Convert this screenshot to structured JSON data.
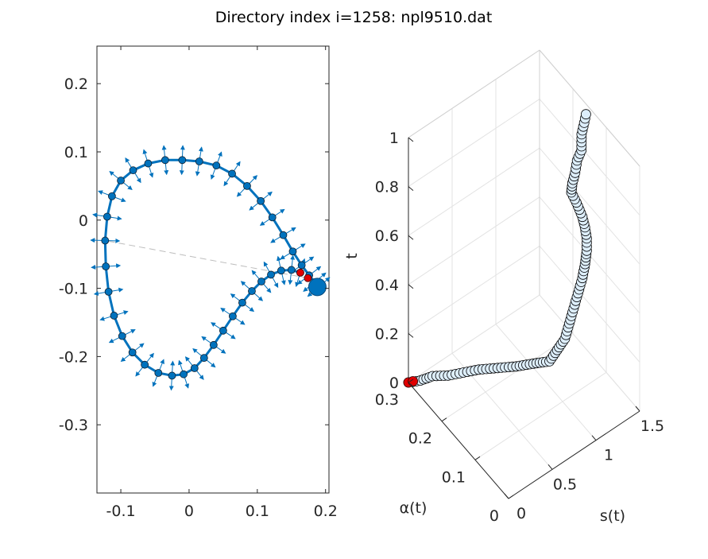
{
  "figure": {
    "title": "Directory index i=1258: npl9510.dat"
  },
  "chart_data": [
    {
      "type": "scatter",
      "name": "airfoil-2d",
      "xlim": [
        -0.135,
        0.205
      ],
      "ylim": [
        -0.4,
        0.255
      ],
      "xticks": [
        -0.1,
        0,
        0.1,
        0.2
      ],
      "xtick_labels": [
        "-0.1",
        "0",
        "0.1",
        "0.2"
      ],
      "yticks": [
        0.2,
        0.1,
        0,
        -0.1,
        -0.2,
        -0.3
      ],
      "ytick_labels": [
        "0.2",
        "0.1",
        "0",
        "-0.1",
        "-0.2",
        "-0.3"
      ],
      "colors": {
        "marker": "#0072BD",
        "highlight": "#E00000",
        "chord": "#BDBDBD"
      },
      "curve": [
        [
          0.163,
          -0.077
        ],
        [
          0.15,
          -0.073
        ],
        [
          0.135,
          -0.074
        ],
        [
          0.12,
          -0.08
        ],
        [
          0.106,
          -0.09
        ],
        [
          0.092,
          -0.104
        ],
        [
          0.078,
          -0.121
        ],
        [
          0.064,
          -0.141
        ],
        [
          0.05,
          -0.162
        ],
        [
          0.036,
          -0.183
        ],
        [
          0.022,
          -0.202
        ],
        [
          0.008,
          -0.217
        ],
        [
          -0.008,
          -0.226
        ],
        [
          -0.025,
          -0.228
        ],
        [
          -0.045,
          -0.224
        ],
        [
          -0.065,
          -0.212
        ],
        [
          -0.083,
          -0.194
        ],
        [
          -0.098,
          -0.17
        ],
        [
          -0.11,
          -0.14
        ],
        [
          -0.118,
          -0.105
        ],
        [
          -0.122,
          -0.068
        ],
        [
          -0.123,
          -0.03
        ],
        [
          -0.12,
          0.005
        ],
        [
          -0.113,
          0.035
        ],
        [
          -0.1,
          0.058
        ],
        [
          -0.082,
          0.073
        ],
        [
          -0.06,
          0.083
        ],
        [
          -0.035,
          0.088
        ],
        [
          -0.01,
          0.088
        ],
        [
          0.015,
          0.086
        ],
        [
          0.04,
          0.08
        ],
        [
          0.063,
          0.068
        ],
        [
          0.085,
          0.05
        ],
        [
          0.105,
          0.028
        ],
        [
          0.122,
          0.004
        ],
        [
          0.138,
          -0.022
        ],
        [
          0.152,
          -0.046
        ],
        [
          0.165,
          -0.066
        ],
        [
          0.176,
          -0.081
        ],
        [
          0.184,
          -0.091
        ],
        [
          0.19,
          -0.098
        ]
      ],
      "highlight_points": [
        [
          0.163,
          -0.077
        ],
        [
          0.174,
          -0.085
        ]
      ],
      "chord": [
        [
          0.174,
          -0.085
        ],
        [
          -0.123,
          -0.03
        ]
      ]
    },
    {
      "type": "scatter3d",
      "name": "parametric-3d",
      "xlabel": "s(t)",
      "ylabel": "α(t)",
      "zlabel": "t",
      "xlim": [
        0,
        1.5
      ],
      "ylim": [
        0,
        0.3
      ],
      "zlim": [
        0,
        1
      ],
      "xticks": [
        0,
        0.5,
        1,
        1.5
      ],
      "xtick_labels": [
        "0",
        "0.5",
        "1",
        "1.5"
      ],
      "yticks": [
        0,
        0.1,
        0.2,
        0.3
      ],
      "ytick_labels": [
        "0",
        "0.1",
        "0.2",
        "0.3"
      ],
      "zticks": [
        0,
        0.2,
        0.4,
        0.6,
        0.8,
        1
      ],
      "ztick_labels": [
        "0",
        "0.2",
        "0.4",
        "0.6",
        "0.8",
        "1"
      ],
      "grid": true,
      "colors": {
        "marker_face": "#DDEEFB",
        "marker_edge": "#000000",
        "highlight": "#E00000",
        "grid": "#E3E3E3"
      },
      "points": [
        [
          0.0,
          0.3,
          0.0
        ],
        [
          0.1,
          0.29,
          0.0
        ],
        [
          0.2,
          0.28,
          0.01
        ],
        [
          0.3,
          0.26,
          0.02
        ],
        [
          0.4,
          0.24,
          0.04
        ],
        [
          0.5,
          0.22,
          0.06
        ],
        [
          0.6,
          0.19,
          0.09
        ],
        [
          0.7,
          0.16,
          0.12
        ],
        [
          0.78,
          0.13,
          0.16
        ],
        [
          0.85,
          0.1,
          0.2
        ],
        [
          0.9,
          0.09,
          0.25
        ],
        [
          0.95,
          0.08,
          0.3
        ],
        [
          1.0,
          0.08,
          0.35
        ],
        [
          1.05,
          0.08,
          0.4
        ],
        [
          1.1,
          0.08,
          0.45
        ],
        [
          1.15,
          0.08,
          0.5
        ],
        [
          1.18,
          0.08,
          0.55
        ],
        [
          1.2,
          0.08,
          0.6
        ],
        [
          1.2,
          0.08,
          0.65
        ],
        [
          1.18,
          0.08,
          0.7
        ],
        [
          1.15,
          0.08,
          0.75
        ],
        [
          1.12,
          0.09,
          0.8
        ],
        [
          1.1,
          0.1,
          0.83
        ],
        [
          1.15,
          0.11,
          0.84
        ],
        [
          1.22,
          0.12,
          0.85
        ],
        [
          1.28,
          0.13,
          0.87
        ],
        [
          1.33,
          0.13,
          0.9
        ],
        [
          1.37,
          0.14,
          0.94
        ],
        [
          1.4,
          0.14,
          0.98
        ],
        [
          1.42,
          0.14,
          1.01
        ]
      ],
      "highlight_points": [
        [
          0.0,
          0.3,
          0.0
        ],
        [
          0.04,
          0.297,
          0.0
        ]
      ]
    }
  ]
}
